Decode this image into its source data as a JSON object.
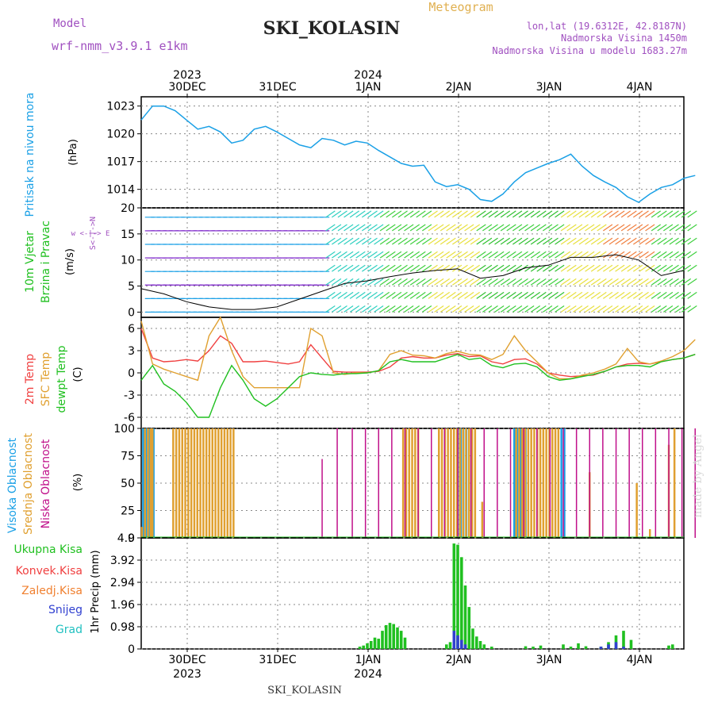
{
  "header": {
    "model_label": "Model",
    "model_value": "wrf-nmm_v3.9.1  e1km",
    "meteogram_label": "Meteogram",
    "station": "SKI_KOLASIN",
    "coords": "lon,lat (19.6312E, 42.8187N)",
    "elevation": "Nadmorska Visina 1450m",
    "model_elevation": "Nadmorska Visina u modelu 1683.27m",
    "credit": "made by Angel",
    "footer_station": "SKI_KOLASIN"
  },
  "colors": {
    "pressure": "#1aa0e6",
    "temp2m": "#f04040",
    "sfc": "#e0a030",
    "dewp": "#20c020",
    "high_cloud": "#1aa0e6",
    "mid_cloud": "#e0a030",
    "low_cloud": "#c0108a",
    "total_precip": "#20c020",
    "conv_precip": "#f04040",
    "frozen_precip": "#f08030",
    "snow": "#3040d0",
    "graupel": "#20c0c0",
    "model_label": "#a050c0",
    "meteogram_label": "#e0b050"
  },
  "time_axis": {
    "top": [
      {
        "day": "30DEC",
        "year": "2023"
      },
      {
        "day": "31DEC",
        "year": ""
      },
      {
        "day": "1JAN",
        "year": "2024"
      },
      {
        "day": "2JAN",
        "year": ""
      },
      {
        "day": "3JAN",
        "year": ""
      },
      {
        "day": "4JAN",
        "year": ""
      }
    ],
    "bottom": [
      {
        "day": "30DEC",
        "year": "2023"
      },
      {
        "day": "31DEC",
        "year": ""
      },
      {
        "day": "1JAN",
        "year": "2024"
      },
      {
        "day": "2JAN",
        "year": ""
      },
      {
        "day": "3JAN",
        "year": ""
      },
      {
        "day": "4JAN",
        "year": ""
      }
    ]
  },
  "panels": {
    "pressure": {
      "label": "Pritisak na nivou mora",
      "unit": "(hPa)"
    },
    "wind": {
      "label1": "10m Vjetar",
      "label2": "Brzina i Pravac",
      "unit": "(m/s)",
      "compass": "w <-|-> E",
      "compass2": "S<-|->N"
    },
    "temp": {
      "label_2m": "2m Temp",
      "label_sfc": "SFC Temp",
      "label_dewp": "dewpt Temp",
      "unit": "(C)"
    },
    "cloud": {
      "label_high": "Visoka Oblacnost",
      "label_mid": "Srednja Oblacnost",
      "label_low": "Niska Oblacnost",
      "unit": "(%)"
    },
    "precip": {
      "unit": "1hr Precip (mm)",
      "legend": [
        "Ukupna Kisa",
        "Konvek.Kisa",
        "Zaledj.Kisa",
        "Snijeg",
        "Grad"
      ]
    }
  },
  "chart_data": [
    {
      "type": "line",
      "title": "",
      "ylabel": "Pritisak na nivou mora (hPa)",
      "ylim": [
        1012,
        1024
      ],
      "yticks": [
        1014,
        1017,
        1020,
        1023
      ],
      "x_hours": [
        0,
        3,
        6,
        9,
        12,
        15,
        18,
        21,
        24,
        27,
        30,
        33,
        36,
        39,
        42,
        45,
        48,
        51,
        54,
        57,
        60,
        63,
        66,
        69,
        72,
        75,
        78,
        81,
        84,
        87,
        90,
        93,
        96,
        99,
        102,
        105,
        108,
        111,
        114,
        117,
        120,
        123,
        126,
        129,
        132,
        135,
        138,
        141,
        144,
        147
      ],
      "series": [
        {
          "name": "pressure",
          "values": [
            1021.5,
            1023.0,
            1023.0,
            1022.5,
            1021.5,
            1020.5,
            1020.8,
            1020.2,
            1019.0,
            1019.3,
            1020.5,
            1020.8,
            1020.2,
            1019.5,
            1018.8,
            1018.5,
            1019.5,
            1019.3,
            1018.8,
            1019.2,
            1019.0,
            1018.2,
            1017.5,
            1016.8,
            1016.5,
            1016.6,
            1014.8,
            1014.3,
            1014.5,
            1014.0,
            1012.9,
            1012.7,
            1013.5,
            1014.8,
            1015.8,
            1016.3,
            1016.8,
            1017.2,
            1017.8,
            1016.5,
            1015.5,
            1014.8,
            1014.2,
            1013.2,
            1012.6,
            1013.5,
            1014.2,
            1014.5,
            1015.2,
            1015.5
          ]
        }
      ]
    },
    {
      "type": "line",
      "title": "",
      "ylabel": "10m Vjetar Brzina i Pravac (m/s)",
      "ylim": [
        -1,
        20
      ],
      "yticks": [
        0,
        5,
        10,
        15,
        20
      ],
      "x_hours": [
        0,
        6,
        12,
        18,
        24,
        30,
        36,
        42,
        48,
        54,
        60,
        66,
        72,
        78,
        84,
        90,
        96,
        102,
        108,
        114,
        120,
        126,
        132,
        138,
        144
      ],
      "series": [
        {
          "name": "wind speed",
          "values": [
            4.5,
            3.5,
            2.0,
            1.0,
            0.5,
            0.5,
            1.0,
            2.5,
            4.0,
            5.5,
            6.0,
            6.8,
            7.5,
            8.0,
            8.3,
            6.5,
            7.0,
            8.5,
            9.0,
            10.5,
            10.5,
            11.0,
            10.0,
            7.0,
            8.0
          ]
        }
      ]
    },
    {
      "type": "line",
      "title": "",
      "ylabel": "(C)",
      "ylim": [
        -7.5,
        7.5
      ],
      "yticks": [
        -6,
        -3,
        0,
        3,
        6
      ],
      "x_hours": [
        0,
        3,
        6,
        9,
        12,
        15,
        18,
        21,
        24,
        27,
        30,
        33,
        36,
        39,
        42,
        45,
        48,
        51,
        54,
        57,
        60,
        63,
        66,
        69,
        72,
        75,
        78,
        81,
        84,
        87,
        90,
        93,
        96,
        99,
        102,
        105,
        108,
        111,
        114,
        117,
        120,
        123,
        126,
        129,
        132,
        135,
        138,
        141,
        144,
        147
      ],
      "series": [
        {
          "name": "2m Temp",
          "values": [
            6.0,
            2.0,
            1.5,
            1.6,
            1.8,
            1.6,
            3.0,
            5.0,
            4.0,
            1.5,
            1.5,
            1.6,
            1.4,
            1.2,
            1.5,
            3.8,
            2.0,
            0.2,
            0.1,
            0.1,
            0.1,
            0.2,
            0.8,
            2.0,
            2.2,
            2.0,
            2.0,
            2.4,
            2.6,
            2.2,
            2.3,
            1.5,
            1.2,
            1.8,
            1.9,
            1.2,
            0.0,
            -0.3,
            -0.5,
            -0.4,
            -0.3,
            0.2,
            0.8,
            1.2,
            1.3,
            1.2,
            1.5,
            1.8,
            2.0,
            2.5
          ]
        },
        {
          "name": "SFC Temp",
          "values": [
            7.0,
            1.2,
            0.5,
            0.0,
            -0.5,
            -1.0,
            5.0,
            7.5,
            3.0,
            -0.5,
            -2.0,
            -2.0,
            -2.0,
            -2.0,
            -2.0,
            6.0,
            5.0,
            0.0,
            -0.2,
            0.0,
            0.0,
            0.3,
            2.5,
            3.0,
            2.4,
            2.3,
            2.0,
            2.6,
            2.9,
            2.5,
            2.4,
            1.8,
            2.5,
            5.0,
            3.0,
            1.5,
            0.0,
            -0.8,
            -0.8,
            -0.3,
            0.0,
            0.5,
            1.2,
            3.3,
            1.5,
            1.2,
            1.6,
            2.2,
            3.0,
            4.5
          ]
        },
        {
          "name": "dewpt Temp",
          "values": [
            -1.0,
            1.0,
            -1.5,
            -2.5,
            -4.0,
            -6.0,
            -6.0,
            -2.0,
            1.0,
            -1.0,
            -3.5,
            -4.5,
            -3.5,
            -2.0,
            -0.5,
            0.0,
            -0.2,
            -0.3,
            -0.1,
            -0.1,
            0.0,
            0.3,
            1.5,
            1.8,
            1.5,
            1.5,
            1.5,
            2.0,
            2.5,
            1.8,
            2.0,
            1.0,
            0.7,
            1.2,
            1.3,
            0.8,
            -0.5,
            -1.0,
            -0.8,
            -0.5,
            -0.2,
            0.2,
            0.8,
            1.0,
            1.0,
            0.8,
            1.5,
            1.8,
            2.0,
            2.5
          ]
        }
      ]
    },
    {
      "type": "bar",
      "title": "",
      "ylabel": "(%)",
      "ylim": [
        0,
        100
      ],
      "yticks": [
        0,
        25,
        50,
        75,
        100
      ],
      "series": [
        {
          "name": "Visoka Oblacnost",
          "x_hours": [
            0.5,
            1.3,
            2.0,
            2.8,
            3.3,
            84.0,
            84.8,
            85.5,
            86.3,
            87.0,
            99.0,
            99.8,
            100.6,
            101.4,
            102.0,
            111.5,
            112.3
          ],
          "values": [
            100,
            100,
            100,
            100,
            100,
            100,
            100,
            100,
            100,
            100,
            100,
            100,
            100,
            100,
            100,
            100,
            100
          ]
        },
        {
          "name": "Srednja Oblacnost",
          "x_hours": [
            0.2,
            1.0,
            1.8,
            2.5,
            3.0,
            8.5,
            9.3,
            10.1,
            10.9,
            11.7,
            12.5,
            13.3,
            14.1,
            14.9,
            15.7,
            16.5,
            17.3,
            18.1,
            18.9,
            19.7,
            20.5,
            21.3,
            22.1,
            22.9,
            23.7,
            24.5,
            69.5,
            70.3,
            71.1,
            71.9,
            72.7,
            73.5,
            79.0,
            79.8,
            80.6,
            81.4,
            82.2,
            83.0,
            83.8,
            84.6,
            85.4,
            86.2,
            87.0,
            87.8,
            88.6,
            90.5,
            99.5,
            100.3,
            101.1,
            101.9,
            102.7,
            103.5,
            104.3,
            105.1,
            105.9,
            106.7,
            107.5,
            108.3,
            109.1,
            109.9,
            110.7,
            119.0,
            131.5,
            135.0,
            140.0,
            141.5
          ],
          "values": [
            10,
            100,
            100,
            100,
            100,
            100,
            100,
            100,
            100,
            100,
            100,
            100,
            100,
            100,
            100,
            100,
            100,
            100,
            100,
            100,
            100,
            100,
            100,
            100,
            100,
            100,
            100,
            100,
            100,
            100,
            100,
            100,
            100,
            100,
            100,
            100,
            100,
            100,
            100,
            100,
            100,
            100,
            100,
            100,
            100,
            33,
            100,
            100,
            100,
            100,
            100,
            100,
            100,
            100,
            100,
            100,
            100,
            100,
            100,
            100,
            100,
            60,
            50,
            8,
            85,
            100
          ]
        },
        {
          "name": "Niska Oblacnost",
          "x_hours": [
            48.0,
            52.0,
            56.0,
            59.5,
            63.0,
            66.5,
            70.0,
            73.5,
            77.0,
            80.5,
            84.0,
            87.5,
            91.0,
            94.5,
            98.0,
            101.5,
            105.0,
            108.5,
            112.0,
            115.5,
            119.0,
            122.5,
            126.0,
            129.5,
            133.0,
            136.5,
            140.0,
            143.5,
            147.0
          ],
          "values": [
            72,
            100,
            100,
            100,
            100,
            100,
            100,
            100,
            100,
            100,
            100,
            100,
            100,
            100,
            100,
            100,
            100,
            100,
            100,
            100,
            100,
            100,
            100,
            100,
            100,
            100,
            100,
            100,
            100
          ]
        }
      ]
    },
    {
      "type": "bar",
      "title": "",
      "ylabel": "1hr Precip (mm)",
      "ylim": [
        0,
        4.9
      ],
      "yticks": [
        0,
        0.98,
        1.96,
        2.94,
        3.92,
        4.9
      ],
      "series": [
        {
          "name": "Ukupna Kisa",
          "x_hours": [
            58,
            59,
            60,
            61,
            62,
            63,
            64,
            65,
            66,
            67,
            68,
            69,
            70,
            81,
            82,
            83,
            84,
            85,
            86,
            87,
            88,
            89,
            90,
            91,
            93,
            102,
            104,
            106,
            112,
            114,
            116,
            118,
            122,
            124,
            126,
            128,
            130,
            140,
            141
          ],
          "values": [
            0.1,
            0.15,
            0.25,
            0.35,
            0.5,
            0.45,
            0.8,
            1.05,
            1.15,
            1.1,
            0.95,
            0.8,
            0.5,
            0.2,
            0.3,
            4.65,
            4.6,
            4.05,
            2.8,
            1.85,
            0.9,
            0.55,
            0.35,
            0.2,
            0.1,
            0.12,
            0.1,
            0.15,
            0.2,
            0.1,
            0.25,
            0.12,
            0.1,
            0.3,
            0.6,
            0.8,
            0.4,
            0.15,
            0.2
          ]
        },
        {
          "name": "Snijeg",
          "x_hours": [
            83,
            84,
            85,
            86,
            122,
            124,
            126,
            128
          ],
          "values": [
            0.8,
            0.6,
            0.4,
            0.2,
            0.1,
            0.2,
            0.3,
            0.1
          ]
        }
      ]
    }
  ]
}
